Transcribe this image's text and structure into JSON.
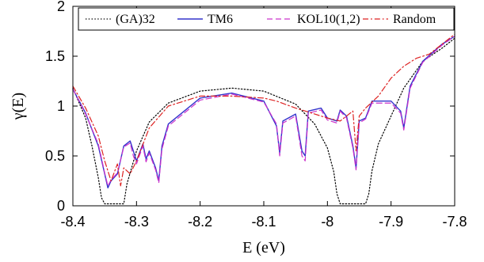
{
  "chart_data": {
    "type": "line",
    "xlabel": "E (eV)",
    "ylabel": "γ(E)",
    "xlim": [
      -8.4,
      -7.8
    ],
    "ylim": [
      0,
      2
    ],
    "grid": false,
    "legend_placement": "top",
    "x_ticks": [
      -8.4,
      -8.3,
      -8.2,
      -8.1,
      -8.0,
      -7.9,
      -7.8
    ],
    "x_tick_labels": [
      "-8.4",
      "-8.3",
      "-8.2",
      "-8.1",
      "-8",
      "-7.9",
      "-7.8"
    ],
    "y_ticks": [
      0,
      0.5,
      1,
      1.5,
      2
    ],
    "y_tick_labels": [
      "0",
      "0.5",
      "1",
      "1.5",
      "2"
    ],
    "series": [
      {
        "name": "(GA)32",
        "color": "#000000",
        "style": "dotted",
        "x": [
          -8.4,
          -8.38,
          -8.37,
          -8.36,
          -8.355,
          -8.35,
          -8.33,
          -8.32,
          -8.315,
          -8.3,
          -8.28,
          -8.25,
          -8.2,
          -8.15,
          -8.1,
          -8.05,
          -8.02,
          -8.0,
          -7.99,
          -7.985,
          -7.98,
          -7.94,
          -7.935,
          -7.93,
          -7.92,
          -7.9,
          -7.88,
          -7.85,
          -7.82,
          -7.8
        ],
        "y": [
          1.18,
          0.88,
          0.6,
          0.28,
          0.08,
          0.02,
          0.02,
          0.02,
          0.22,
          0.55,
          0.84,
          1.03,
          1.15,
          1.18,
          1.15,
          1.02,
          0.82,
          0.58,
          0.34,
          0.12,
          0.02,
          0.02,
          0.12,
          0.35,
          0.62,
          0.9,
          1.18,
          1.45,
          1.58,
          1.68
        ]
      },
      {
        "name": "TM6",
        "color": "#3333cc",
        "style": "solid",
        "x": [
          -8.4,
          -8.38,
          -8.36,
          -8.35,
          -8.345,
          -8.34,
          -8.33,
          -8.32,
          -8.31,
          -8.305,
          -8.3,
          -8.29,
          -8.285,
          -8.28,
          -8.27,
          -8.265,
          -8.26,
          -8.25,
          -8.2,
          -8.15,
          -8.1,
          -8.08,
          -8.075,
          -8.07,
          -8.05,
          -8.04,
          -8.035,
          -8.03,
          -8.01,
          -8.0,
          -7.985,
          -7.98,
          -7.97,
          -7.96,
          -7.955,
          -7.95,
          -7.94,
          -7.93,
          -7.9,
          -7.885,
          -7.88,
          -7.87,
          -7.85,
          -7.82,
          -7.8
        ],
        "y": [
          1.17,
          0.93,
          0.6,
          0.32,
          0.18,
          0.25,
          0.32,
          0.6,
          0.65,
          0.55,
          0.45,
          0.62,
          0.47,
          0.55,
          0.38,
          0.25,
          0.6,
          0.82,
          1.08,
          1.13,
          1.05,
          0.8,
          0.53,
          0.85,
          0.92,
          0.55,
          0.5,
          0.95,
          0.98,
          0.88,
          0.85,
          0.96,
          0.9,
          0.6,
          0.38,
          0.85,
          0.88,
          1.05,
          1.05,
          0.95,
          0.78,
          1.2,
          1.45,
          1.62,
          1.7
        ]
      },
      {
        "name": "KOL10(1,2)",
        "color": "#cc33cc",
        "style": "dashed",
        "x": [
          -8.4,
          -8.38,
          -8.36,
          -8.35,
          -8.345,
          -8.34,
          -8.33,
          -8.32,
          -8.31,
          -8.305,
          -8.3,
          -8.29,
          -8.285,
          -8.28,
          -8.27,
          -8.265,
          -8.26,
          -8.25,
          -8.2,
          -8.15,
          -8.1,
          -8.08,
          -8.075,
          -8.07,
          -8.05,
          -8.04,
          -8.035,
          -8.03,
          -8.01,
          -8.0,
          -7.985,
          -7.98,
          -7.97,
          -7.96,
          -7.955,
          -7.95,
          -7.94,
          -7.93,
          -7.9,
          -7.885,
          -7.88,
          -7.87,
          -7.85,
          -7.82,
          -7.8
        ],
        "y": [
          1.17,
          0.92,
          0.62,
          0.33,
          0.2,
          0.26,
          0.33,
          0.59,
          0.63,
          0.5,
          0.42,
          0.6,
          0.44,
          0.53,
          0.36,
          0.23,
          0.57,
          0.8,
          1.06,
          1.12,
          1.04,
          0.82,
          0.5,
          0.83,
          0.9,
          0.5,
          0.45,
          0.93,
          0.96,
          0.86,
          0.83,
          0.95,
          0.88,
          0.58,
          0.36,
          0.83,
          0.87,
          1.03,
          1.03,
          0.93,
          0.76,
          1.18,
          1.44,
          1.61,
          1.7
        ]
      },
      {
        "name": "Random",
        "color": "#dd2222",
        "style": "dashdot",
        "x": [
          -8.4,
          -8.38,
          -8.36,
          -8.35,
          -8.345,
          -8.34,
          -8.33,
          -8.325,
          -8.32,
          -8.31,
          -8.3,
          -8.28,
          -8.25,
          -8.2,
          -8.15,
          -8.1,
          -8.08,
          -8.05,
          -8.02,
          -8.0,
          -7.98,
          -7.96,
          -7.955,
          -7.95,
          -7.94,
          -7.92,
          -7.9,
          -7.88,
          -7.86,
          -7.84,
          -7.82,
          -7.8
        ],
        "y": [
          1.2,
          0.98,
          0.7,
          0.45,
          0.35,
          0.25,
          0.42,
          0.2,
          0.38,
          0.32,
          0.45,
          0.78,
          1.0,
          1.1,
          1.1,
          1.08,
          1.05,
          0.98,
          0.92,
          0.88,
          0.85,
          0.95,
          0.55,
          0.9,
          0.98,
          1.1,
          1.28,
          1.4,
          1.48,
          1.52,
          1.62,
          1.72
        ]
      }
    ]
  }
}
